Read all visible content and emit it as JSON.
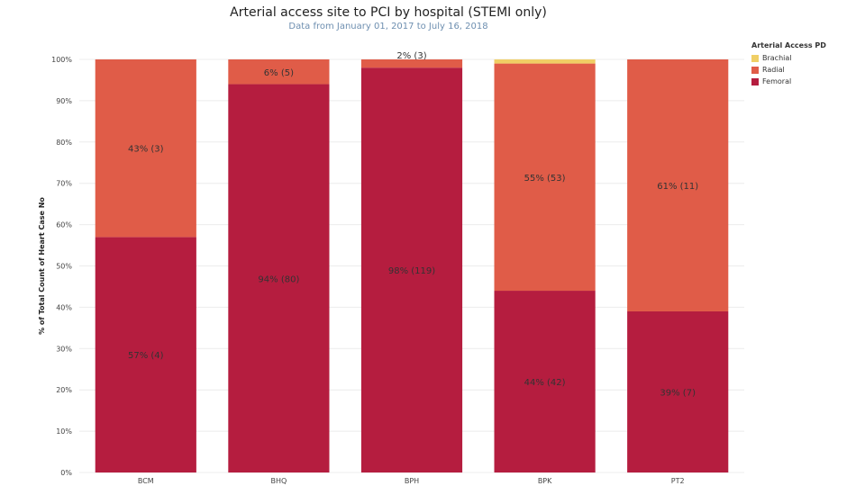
{
  "chart_data": {
    "type": "bar",
    "stacked": true,
    "title": "Arterial access site to  PCI by hospital (STEMI only)",
    "subtitle": "Data from January 01, 2017 to July 16, 2018",
    "xlabel": "",
    "ylabel": "% of Total Count of Heart Case No",
    "ylim": [
      0,
      100
    ],
    "yticks": [
      "0%",
      "10%",
      "20%",
      "30%",
      "40%",
      "50%",
      "60%",
      "70%",
      "80%",
      "90%",
      "100%"
    ],
    "categories": [
      "BCM",
      "BHQ",
      "BPH",
      "BPK",
      "PT2"
    ],
    "legend_title": "Arterial Access PD",
    "series": [
      {
        "name": "Femoral",
        "color": "#b51d3f",
        "values": [
          57,
          94,
          98,
          44,
          39
        ],
        "labels": [
          "57% (4)",
          "94% (80)",
          "98% (119)",
          "44% (42)",
          "39% (7)"
        ]
      },
      {
        "name": "Radial",
        "color": "#e05c48",
        "values": [
          43,
          6,
          2,
          55,
          61
        ],
        "labels": [
          "43% (3)",
          "6% (5)",
          "2% (3)",
          "55% (53)",
          "61% (11)"
        ]
      },
      {
        "name": "Brachial",
        "color": "#f0cf65",
        "values": [
          0,
          0,
          0,
          1,
          0
        ],
        "labels": [
          "",
          "",
          "",
          "",
          ""
        ]
      }
    ],
    "legend_order": [
      "Brachial",
      "Radial",
      "Femoral"
    ]
  }
}
